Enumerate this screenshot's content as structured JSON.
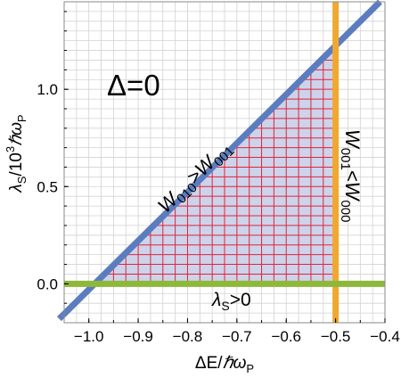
{
  "chart_data": {
    "type": "line",
    "title": "",
    "xlabel": "ΔE/ℏω_P",
    "ylabel": "λ_S/10^3 ℏω_P",
    "xlim": [
      -1.05,
      -0.4
    ],
    "ylim": [
      -0.2,
      1.45
    ],
    "grid": true,
    "minor_grid_step": {
      "x": 0.025,
      "y": 0.05
    },
    "x_ticks": [
      -1.0,
      -0.9,
      -0.8,
      -0.7,
      -0.6,
      -0.5,
      -0.4
    ],
    "x_tick_labels": [
      "−1.0",
      "−0.9",
      "−0.8",
      "−0.7",
      "−0.6",
      "−0.5",
      "−0.4"
    ],
    "y_ticks": [
      0.0,
      0.5,
      1.0
    ],
    "y_tick_labels": [
      "0.0",
      "0.5",
      "1.0"
    ],
    "series": [
      {
        "name": "W010>W001",
        "points": [
          [
            -1.06,
            -0.18
          ],
          [
            -0.41,
            1.45
          ]
        ]
      },
      {
        "name": "W001<W000",
        "points": [
          [
            -0.5,
            -0.2
          ],
          [
            -0.5,
            1.45
          ]
        ]
      },
      {
        "name": "λS>0",
        "points": [
          [
            -1.05,
            0.0
          ],
          [
            -0.4,
            0.0
          ]
        ]
      }
    ],
    "region": {
      "vertices": [
        [
          -0.99,
          0.0
        ],
        [
          -0.5,
          1.22
        ],
        [
          -0.5,
          0.0
        ]
      ],
      "fill_color": "#cdd3ea",
      "grid_color": "#e0243a",
      "grid_step": {
        "x": 0.025,
        "y": 0.05
      }
    },
    "colors": {
      "W010>W001": "#5b7dbf",
      "W001<W000": "#f0a830",
      "λS>0": "#8db83a"
    },
    "annotations": {
      "delta": "Δ=0",
      "diagonal": {
        "main": "W",
        "sub1": "010",
        "mid": ">W",
        "sub2": "001"
      },
      "vertical": {
        "main": "W",
        "sub1": "001",
        "mid": "<W",
        "sub2": "000"
      },
      "horizontal": {
        "main": "λ",
        "sub1": "S",
        "mid": ">0"
      }
    },
    "axis_labels": {
      "x": {
        "pre": "ΔE/",
        "sym": "ℏω",
        "sub": "P"
      },
      "y": {
        "sym": "λ",
        "sub1": "S",
        "mid": "/10",
        "sup": "3",
        "sym2": "ℏω",
        "sub2": "P"
      }
    }
  }
}
